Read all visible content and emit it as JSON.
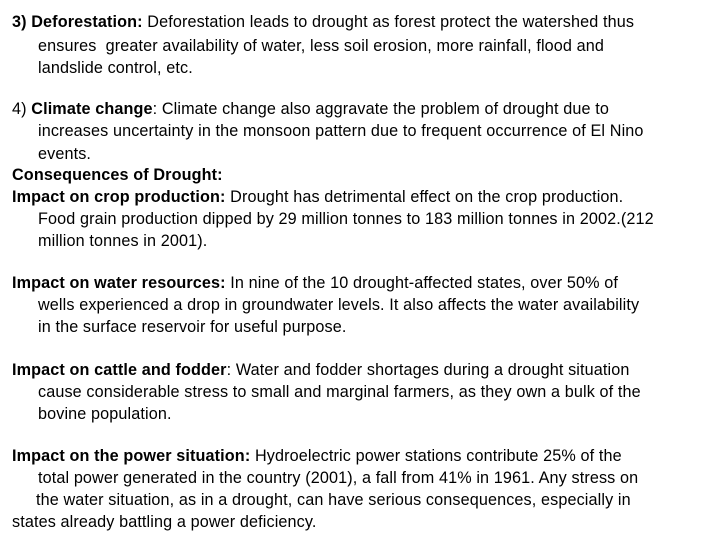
{
  "sections": [
    {
      "heading": "3) Deforestation: ",
      "lines": [
        "Deforestation leads to drought as forest protect the watershed thus",
        "ensures  greater availability of water, less soil erosion, more rainfall, flood and",
        "landslide control, etc."
      ]
    },
    {
      "prefix": "4) ",
      "heading": "Climate change",
      "lines": [
        ": Climate change also aggravate the problem of drought due to",
        "increases uncertainty in the monsoon pattern due to frequent occurrence of El Nino",
        "events."
      ]
    },
    {
      "heading": "Consequences of Drought:"
    },
    {
      "heading": "Impact on crop production:",
      "lines": [
        " Drought has detrimental effect on the crop production.",
        "Food grain production dipped by 29 million tonnes to 183 million tonnes in 2002.(212",
        "million tonnes in 2001)."
      ]
    },
    {
      "heading": "Impact on water resources:",
      "lines": [
        " In nine of the 10 drought-affected states, over 50% of",
        "wells experienced a drop in groundwater levels. It also affects the water availability",
        "in the surface reservoir for useful purpose."
      ]
    },
    {
      "heading": "Impact on cattle and fodder",
      "lines": [
        ": Water and fodder shortages during a drought situation",
        "cause considerable stress to small and marginal farmers, as they own a bulk of the",
        "bovine population."
      ]
    },
    {
      "heading": "Impact on the power situation:",
      "lines": [
        " Hydroelectric power stations contribute 25% of the",
        "total power generated in the country (2001), a fall from 41% in 1961. Any stress on",
        "the water situation, as in a drought, can have serious consequences, especially in",
        "states already battling a power deficiency."
      ]
    }
  ]
}
